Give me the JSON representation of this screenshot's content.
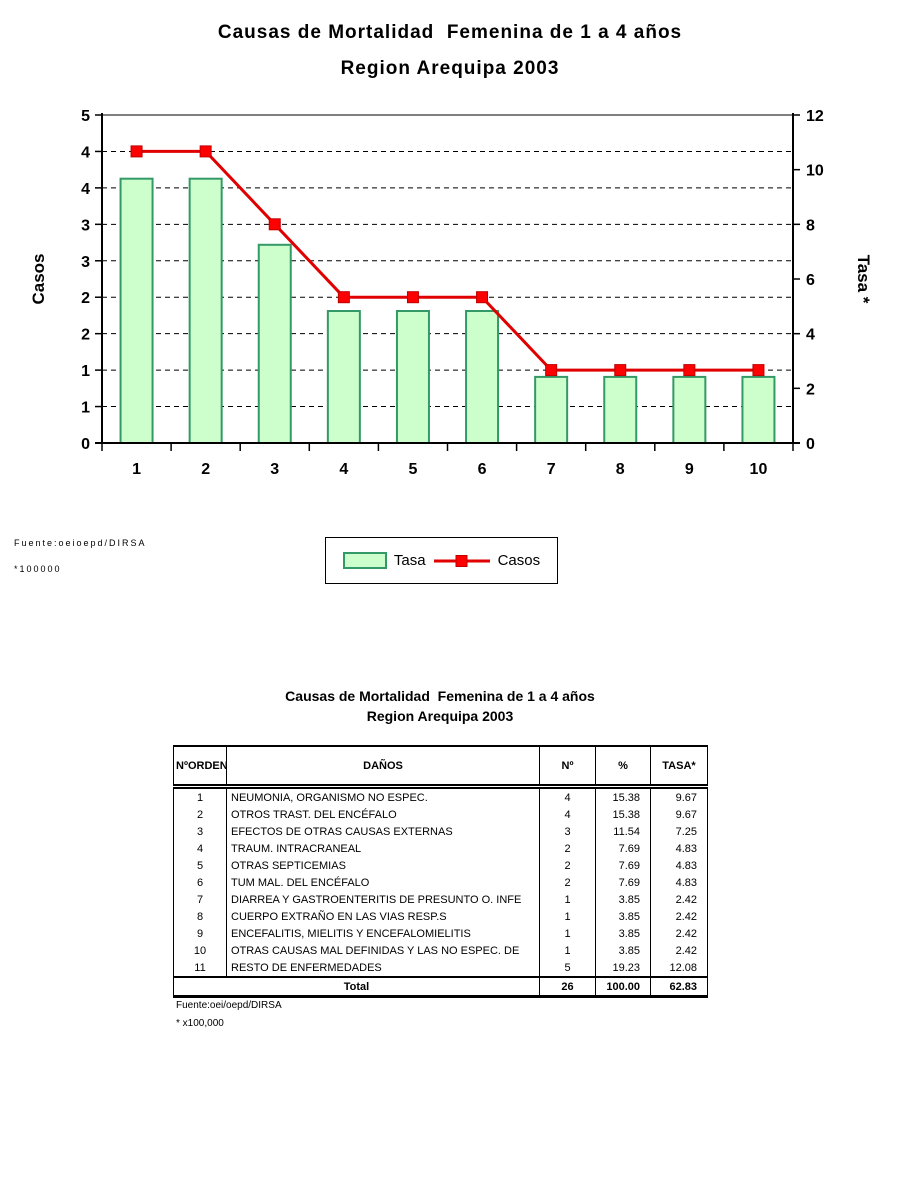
{
  "chart": {
    "title_line1": "Causas de Mortalidad  Femenina de 1 a 4 años",
    "title_line2": "Region Arequipa 2003",
    "footnote_line1": "Fuente:oeioepd/DIRSA",
    "footnote_line2": "*100000"
  },
  "chart_data": {
    "type": "bar+line combo",
    "categories": [
      "1",
      "2",
      "3",
      "4",
      "5",
      "6",
      "7",
      "8",
      "9",
      "10"
    ],
    "series": [
      {
        "name": "Tasa",
        "type": "bar",
        "axis": "right",
        "values": [
          9.67,
          9.67,
          7.25,
          4.83,
          4.83,
          4.83,
          2.42,
          2.42,
          2.42,
          2.42
        ],
        "fill": "#ccffcc",
        "stroke": "#339966"
      },
      {
        "name": "Casos",
        "type": "line",
        "axis": "left",
        "values": [
          4,
          4,
          3,
          2,
          2,
          2,
          1,
          1,
          1,
          1
        ],
        "color": "#e00000",
        "marker": "square",
        "marker_fill": "#ff0000"
      }
    ],
    "left_axis": {
      "label": "Casos",
      "min": 0,
      "max": 4.5,
      "tick_step": 0.5,
      "tick_labels_bottom_to_top": [
        "0",
        "1",
        "1",
        "2",
        "2",
        "3",
        "3",
        "4",
        "4",
        "5"
      ]
    },
    "right_axis": {
      "label": "Tasa *",
      "min": 0,
      "max": 12,
      "tick_step": 2,
      "tick_labels_bottom_to_top": [
        "0",
        "2",
        "4",
        "6",
        "8",
        "10",
        "12"
      ]
    },
    "grid": "horizontal dashed",
    "plot_top_border_color": "#808080",
    "legend_position": "bottom-center",
    "legend_entries": [
      "Tasa",
      "Casos"
    ]
  },
  "table": {
    "title_line1": "Causas de Mortalidad  Femenina de 1 a 4 años",
    "title_line2": "Region Arequipa 2003",
    "headers": [
      "NºORDEN",
      "DAÑOS",
      "Nº",
      "%",
      "TASA*"
    ],
    "rows": [
      [
        "1",
        "NEUMONIA, ORGANISMO NO ESPEC.",
        "4",
        "15.38",
        "9.67"
      ],
      [
        "2",
        "OTROS TRAST. DEL ENCÉFALO",
        "4",
        "15.38",
        "9.67"
      ],
      [
        "3",
        "EFECTOS DE OTRAS CAUSAS EXTERNAS",
        "3",
        "11.54",
        "7.25"
      ],
      [
        "4",
        "TRAUM. INTRACRANEAL",
        "2",
        "7.69",
        "4.83"
      ],
      [
        "5",
        "OTRAS SEPTICEMIAS",
        "2",
        "7.69",
        "4.83"
      ],
      [
        "6",
        "TUM MAL. DEL ENCÉFALO",
        "2",
        "7.69",
        "4.83"
      ],
      [
        "7",
        "DIARREA Y GASTROENTERITIS DE PRESUNTO O. INFE",
        "1",
        "3.85",
        "2.42"
      ],
      [
        "8",
        "CUERPO EXTRAÑO EN LAS VIAS RESP.S",
        "1",
        "3.85",
        "2.42"
      ],
      [
        "9",
        "ENCEFALITIS, MIELITIS Y ENCEFALOMIELITIS",
        "1",
        "3.85",
        "2.42"
      ],
      [
        "10",
        "OTRAS CAUSAS MAL DEFINIDAS Y LAS NO ESPEC. DE",
        "1",
        "3.85",
        "2.42"
      ],
      [
        "11",
        "RESTO DE ENFERMEDADES",
        "5",
        "19.23",
        "12.08"
      ]
    ],
    "total_row": {
      "label": "Total",
      "n": "26",
      "pct": "100.00",
      "tasa": "62.83"
    },
    "footnote_line1": "Fuente:oei/oepd/DIRSA",
    "footnote_line2": "* x100,000"
  }
}
